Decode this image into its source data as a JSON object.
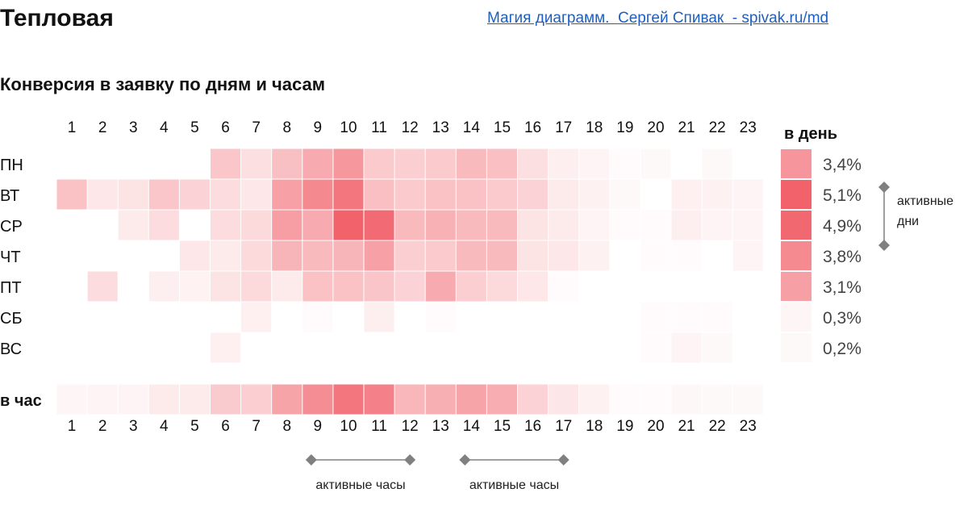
{
  "header": {
    "title": "Тепловая",
    "link": "Магия диаграмм.  Сергей Спивак  - spivak.ru/md"
  },
  "chart_data": {
    "type": "heatmap",
    "title": "Конверсия в заявку по дням и часам",
    "hours": [
      "1",
      "2",
      "3",
      "4",
      "5",
      "6",
      "7",
      "8",
      "9",
      "10",
      "11",
      "12",
      "13",
      "14",
      "15",
      "16",
      "17",
      "18",
      "19",
      "20",
      "21",
      "22",
      "23"
    ],
    "days": [
      "ПН",
      "ВТ",
      "СР",
      "ЧТ",
      "ПТ",
      "СБ",
      "ВС"
    ],
    "matrix": [
      [
        0,
        0,
        0,
        0,
        0,
        0.36,
        0.2,
        0.4,
        0.54,
        0.66,
        0.34,
        0.31,
        0.34,
        0.44,
        0.41,
        0.2,
        0.11,
        0.07,
        0.03,
        0.04,
        0,
        0.04,
        0
      ],
      [
        0.39,
        0.15,
        0.18,
        0.36,
        0.28,
        0.22,
        0.15,
        0.6,
        0.75,
        0.87,
        0.41,
        0.34,
        0.39,
        0.39,
        0.34,
        0.28,
        0.13,
        0.09,
        0.04,
        0,
        0.1,
        0.09,
        0.07
      ],
      [
        0,
        0,
        0.13,
        0.22,
        0,
        0.22,
        0.24,
        0.62,
        0.54,
        1,
        0.94,
        0.44,
        0.49,
        0.44,
        0.44,
        0.18,
        0.13,
        0.07,
        0.03,
        0.03,
        0.11,
        0.07,
        0.07
      ],
      [
        0,
        0,
        0,
        0,
        0.15,
        0.13,
        0.24,
        0.47,
        0.44,
        0.47,
        0.6,
        0.31,
        0.34,
        0.44,
        0.44,
        0.18,
        0.15,
        0.09,
        0,
        0.03,
        0.03,
        0,
        0.07
      ],
      [
        0,
        0.22,
        0,
        0.11,
        0.08,
        0.18,
        0.24,
        0.13,
        0.39,
        0.39,
        0.37,
        0.28,
        0.54,
        0.31,
        0.24,
        0.15,
        0.03,
        0,
        0,
        0,
        0,
        0,
        0
      ],
      [
        0,
        0,
        0,
        0,
        0,
        0,
        0.1,
        0,
        0.03,
        0,
        0.11,
        0,
        0.03,
        0,
        0,
        0,
        0,
        0,
        0,
        0.03,
        0.03,
        0.03,
        0
      ],
      [
        0,
        0,
        0,
        0,
        0,
        0.1,
        0,
        0,
        0,
        0,
        0,
        0,
        0,
        0,
        0,
        0,
        0,
        0,
        0,
        0.03,
        0.07,
        0.04,
        0
      ]
    ],
    "per_hour_label": "в час",
    "per_hour": [
      0.06,
      0.07,
      0.07,
      0.13,
      0.13,
      0.33,
      0.31,
      0.58,
      0.72,
      0.87,
      0.8,
      0.46,
      0.51,
      0.58,
      0.52,
      0.28,
      0.16,
      0.09,
      0.03,
      0.03,
      0.05,
      0.04,
      0.04
    ],
    "per_day_label": "в день",
    "per_day": [
      {
        "day": "ПН",
        "value": 3.4,
        "label": "3,4%"
      },
      {
        "day": "ВТ",
        "value": 5.1,
        "label": "5,1%"
      },
      {
        "day": "СР",
        "value": 4.9,
        "label": "4,9%"
      },
      {
        "day": "ЧТ",
        "value": 3.8,
        "label": "3,8%"
      },
      {
        "day": "ПТ",
        "value": 3.1,
        "label": "3,1%"
      },
      {
        "day": "СБ",
        "value": 0.3,
        "label": "0,3%"
      },
      {
        "day": "ВС",
        "value": 0.2,
        "label": "0,2%"
      }
    ],
    "per_day_max": 5.1,
    "annotations": {
      "active_days": {
        "line1": "активные",
        "line2": "дни",
        "days": [
          "ВТ",
          "СР"
        ]
      },
      "active_hours": [
        {
          "label": "активные часы",
          "from": "9",
          "to": "12"
        },
        {
          "label": "активные часы",
          "from": "14",
          "to": "17"
        }
      ]
    },
    "colors": {
      "low": "#ffffff",
      "high": "#f1626b",
      "marker": "#808080"
    }
  }
}
